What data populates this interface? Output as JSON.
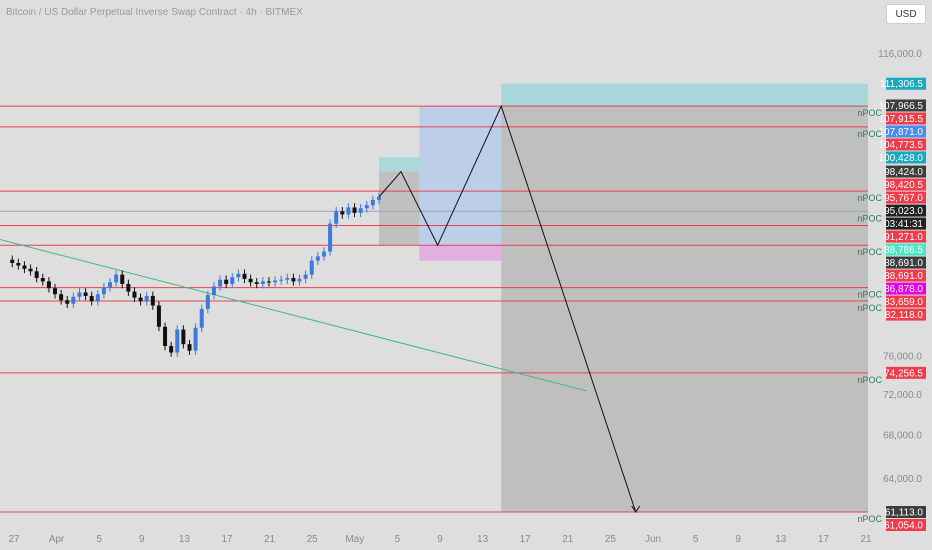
{
  "chart_data": {
    "type": "line",
    "title": "Bitcoin / US Dollar Perpetual Inverse Swap Contract · 4h · BITMEX",
    "currency": "USD",
    "y_axis": {
      "scale": "log",
      "ticks": [
        116000,
        76000,
        72000,
        68000,
        64000
      ]
    },
    "x_axis": {
      "ticks": [
        "27",
        "Apr",
        "5",
        "9",
        "13",
        "17",
        "21",
        "25",
        "May",
        "5",
        "9",
        "13",
        "17",
        "21",
        "25",
        "Jun",
        "5",
        "9",
        "13",
        "17",
        "21"
      ]
    },
    "x_range": [
      -5,
      66
    ],
    "y_range": [
      58000,
      122000
    ],
    "horizontal_levels": [
      107871.0,
      104773.5,
      95767.0,
      91271.0,
      88786.5,
      83659.0,
      82118.0,
      74256.5,
      61113.0,
      93100
    ],
    "npoc_labels": [
      {
        "text": "nPOC",
        "price": 107871.0
      },
      {
        "text": "nPOC",
        "price": 104773.5
      },
      {
        "text": "nPOC",
        "price": 95767.0
      },
      {
        "text": "nPOC",
        "price": 93100
      },
      {
        "text": "nPOC",
        "price": 88786.5
      },
      {
        "text": "nPOC",
        "price": 83659.0
      },
      {
        "text": "nPOC",
        "price": 82118.0
      },
      {
        "text": "nPOC",
        "price": 74256.5
      },
      {
        "text": "nPOC",
        "price": 61113.0
      }
    ],
    "price_badges": [
      {
        "value": "111,306.5",
        "price": 111306.5,
        "color": "#17a9bd"
      },
      {
        "value": "107,966.5",
        "price": 107966.5,
        "color": "#3d3d3d"
      },
      {
        "value": "107,915.5",
        "price": 107915.5,
        "color": "#ef3b4a"
      },
      {
        "value": "107,871.0",
        "price": 107871.0,
        "color": "#4a8cf0"
      },
      {
        "value": "104,773.5",
        "price": 104773.5,
        "color": "#ef3b4a"
      },
      {
        "value": "100,428.0",
        "price": 100428.0,
        "color": "#17a9bd"
      },
      {
        "value": "98,424.0",
        "price": 98424.0,
        "color": "#3d3d3d"
      },
      {
        "value": "98,420.5",
        "price": 98420.5,
        "color": "#ef3b4a"
      },
      {
        "value": "95,767.0",
        "price": 95767.0,
        "color": "#ef3b4a"
      },
      {
        "value": "95,023.0",
        "price": 95023.0,
        "color": "#222222"
      },
      {
        "value": "03:41:31",
        "price": 95023.0,
        "color": "#222222"
      },
      {
        "value": "91,271.0",
        "price": 91271.0,
        "color": "#ef3b4a"
      },
      {
        "value": "88,786.5",
        "price": 88786.5,
        "color": "#4de6c4"
      },
      {
        "value": "88,691.0",
        "price": 88691.0,
        "color": "#3d3d3d"
      },
      {
        "value": "88,691.0",
        "price": 88691.0,
        "color": "#ef3b4a"
      },
      {
        "value": "86,878.0",
        "price": 86878.0,
        "color": "#e600e6"
      },
      {
        "value": "83,659.0",
        "price": 83659.0,
        "color": "#ef3b4a"
      },
      {
        "value": "82,118.0",
        "price": 82118.0,
        "color": "#ef3b4a"
      },
      {
        "value": "74,256.5",
        "price": 74256.5,
        "color": "#ef3b4a"
      },
      {
        "value": "61,113.0",
        "price": 61113.0,
        "color": "#3d3d3d"
      },
      {
        "value": "61,054.0",
        "price": 61054.0,
        "color": "#ef3b4a"
      }
    ],
    "candles_close": [
      [
        -4.5,
        87000
      ],
      [
        -4,
        86600
      ],
      [
        -3.5,
        86300
      ],
      [
        -3,
        85900
      ],
      [
        -2.5,
        85600
      ],
      [
        -2,
        84800
      ],
      [
        -1.5,
        84400
      ],
      [
        -1,
        83600
      ],
      [
        -0.5,
        82900
      ],
      [
        0,
        82200
      ],
      [
        0.5,
        81800
      ],
      [
        1,
        82600
      ],
      [
        1.5,
        83100
      ],
      [
        2,
        82700
      ],
      [
        2.5,
        82100
      ],
      [
        3,
        82900
      ],
      [
        3.5,
        83700
      ],
      [
        4,
        84300
      ],
      [
        4.5,
        85200
      ],
      [
        5,
        84100
      ],
      [
        5.5,
        83200
      ],
      [
        6,
        82500
      ],
      [
        6.5,
        82100
      ],
      [
        7,
        82700
      ],
      [
        7.5,
        81600
      ],
      [
        8,
        79200
      ],
      [
        8.5,
        77100
      ],
      [
        9,
        76400
      ],
      [
        9.5,
        78900
      ],
      [
        10,
        77300
      ],
      [
        10.5,
        76600
      ],
      [
        11,
        79100
      ],
      [
        11.5,
        81200
      ],
      [
        12,
        82800
      ],
      [
        12.5,
        83800
      ],
      [
        13,
        84600
      ],
      [
        13.5,
        84100
      ],
      [
        14,
        84900
      ],
      [
        14.5,
        85300
      ],
      [
        15,
        84700
      ],
      [
        15.5,
        84300
      ],
      [
        16,
        84100
      ],
      [
        16.5,
        84400
      ],
      [
        17,
        84300
      ],
      [
        17.5,
        84500
      ],
      [
        18,
        84600
      ],
      [
        18.5,
        84800
      ],
      [
        19,
        84400
      ],
      [
        19.5,
        84700
      ],
      [
        20,
        85200
      ],
      [
        20.5,
        86900
      ],
      [
        21,
        87400
      ],
      [
        21.5,
        88000
      ],
      [
        22,
        91500
      ],
      [
        22.5,
        93100
      ],
      [
        23,
        92700
      ],
      [
        23.5,
        93600
      ],
      [
        24,
        92900
      ],
      [
        24.5,
        93500
      ],
      [
        25,
        93900
      ],
      [
        25.5,
        94600
      ],
      [
        26,
        95000
      ]
    ],
    "projection_path": [
      [
        26,
        95000
      ],
      [
        27.8,
        98420
      ],
      [
        30.8,
        88786
      ],
      [
        36,
        107871
      ],
      [
        47,
        61113
      ]
    ],
    "trendline": [
      [
        -5,
        89500
      ],
      [
        43,
        72400
      ]
    ],
    "zones": [
      {
        "x0": 26,
        "x1": 29.3,
        "p0": 98424,
        "p1": 100428,
        "color": "#7fd3d8",
        "opacity": 0.55
      },
      {
        "x0": 26,
        "x1": 29.3,
        "p0": 88786,
        "p1": 98424,
        "color": "#a8a8a8",
        "opacity": 0.55
      },
      {
        "x0": 29.3,
        "x1": 36,
        "p0": 88786,
        "p1": 107871,
        "color": "#a6c3ee",
        "opacity": 0.6
      },
      {
        "x0": 29.3,
        "x1": 36,
        "p0": 86878,
        "p1": 88786,
        "color": "#e58fe0",
        "opacity": 0.6
      },
      {
        "x0": 36,
        "x1": 66,
        "p0": 107871,
        "p1": 111306,
        "color": "#86d1d6",
        "opacity": 0.6
      },
      {
        "x0": 36,
        "x1": 66,
        "p0": 61113,
        "p1": 107871,
        "color": "#a6a6a6",
        "opacity": 0.55
      }
    ]
  }
}
